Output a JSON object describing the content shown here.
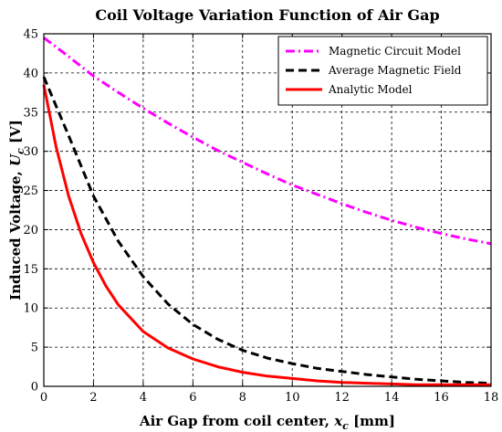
{
  "chart_data": {
    "type": "line",
    "title": "Coil Voltage Variation Function of Air Gap",
    "xlabel": "Air Gap from coil center, x_c [mm]",
    "xlabel_text": "Air Gap from coil center, ",
    "xlabel_var": "x",
    "xlabel_sub": "c",
    "xlabel_unit": " [mm]",
    "ylabel": "Induced Voltage, U_c [V]",
    "ylabel_text": "Induced Voltage, ",
    "ylabel_var": "U",
    "ylabel_sub": "c",
    "ylabel_unit": " [V]",
    "xlim": [
      0,
      18
    ],
    "ylim": [
      0,
      45
    ],
    "xticks": [
      0,
      2,
      4,
      6,
      8,
      10,
      12,
      14,
      16,
      18
    ],
    "yticks": [
      0,
      5,
      10,
      15,
      20,
      25,
      30,
      35,
      40,
      45
    ],
    "grid": true,
    "legend_position": "top-right",
    "series": [
      {
        "name": "Magnetic Circuit Model",
        "color": "#ff00ff",
        "style": "dash-dot",
        "x": [
          0,
          1,
          2,
          3,
          4,
          5,
          6,
          7,
          8,
          9,
          10,
          11,
          12,
          13,
          14,
          15,
          16,
          17,
          18
        ],
        "y": [
          44.5,
          42.1,
          39.6,
          37.5,
          35.5,
          33.6,
          31.8,
          30.1,
          28.6,
          27.1,
          25.7,
          24.5,
          23.3,
          22.2,
          21.2,
          20.3,
          19.5,
          18.8,
          18.2
        ]
      },
      {
        "name": "Average Magnetic Field",
        "color": "#000000",
        "style": "dashed",
        "x": [
          0,
          1,
          2,
          3,
          4,
          5,
          6,
          7,
          8,
          9,
          10,
          11,
          12,
          13,
          14,
          15,
          16,
          17,
          18
        ],
        "y": [
          39.5,
          32.0,
          24.3,
          18.5,
          14.0,
          10.5,
          7.9,
          6.0,
          4.6,
          3.6,
          2.9,
          2.3,
          1.9,
          1.5,
          1.2,
          0.9,
          0.7,
          0.5,
          0.4
        ]
      },
      {
        "name": "Analytic Model",
        "color": "#ff0000",
        "style": "solid",
        "x": [
          0,
          0.5,
          1,
          1.5,
          2,
          2.5,
          3,
          4,
          5,
          6,
          7,
          8,
          9,
          10,
          11,
          12,
          13,
          14,
          15,
          16,
          17,
          18
        ],
        "y": [
          38.5,
          30.5,
          24.3,
          19.5,
          15.8,
          12.8,
          10.4,
          7.0,
          4.9,
          3.5,
          2.5,
          1.8,
          1.3,
          1.0,
          0.7,
          0.5,
          0.4,
          0.3,
          0.2,
          0.2,
          0.2,
          0.2
        ]
      }
    ]
  }
}
